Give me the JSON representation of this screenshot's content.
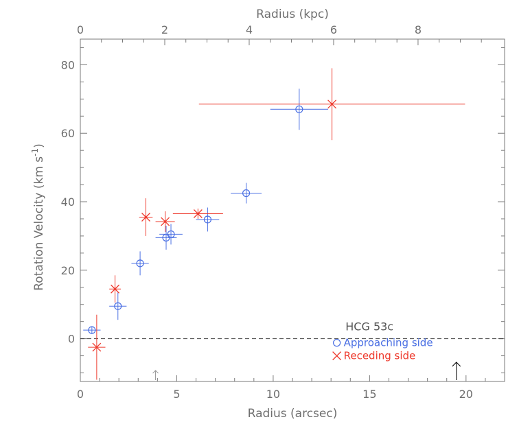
{
  "chart_data": {
    "type": "scatter",
    "xlabel": "Radius (arcsec)",
    "x2label": "Radius (kpc)",
    "ylabel_main": "Rotation Velocity (km s",
    "ylabel_sup": "-1",
    "ylabel_close": ")",
    "xlim": [
      0,
      22
    ],
    "x2lim": [
      0,
      10.05
    ],
    "ylim": [
      -12.5,
      87.5
    ],
    "x_major_ticks": [
      0,
      5,
      10,
      15,
      20
    ],
    "x_tick_labels": [
      "0",
      "5",
      "10",
      "15",
      "20"
    ],
    "x2_major_ticks": [
      0,
      2,
      4,
      6,
      8
    ],
    "x2_tick_labels": [
      "0",
      "2",
      "4",
      "6",
      "8"
    ],
    "y_major_ticks": [
      0,
      20,
      40,
      60,
      80
    ],
    "y_tick_labels": [
      "0",
      "20",
      "40",
      "60",
      "80"
    ],
    "zero_line": 0,
    "grid": false,
    "annotation": "HCG 53c",
    "legend_position": "bottom-right",
    "arrows": [
      {
        "x": 3.9,
        "color": "#999999",
        "kind": "small"
      },
      {
        "x": 19.5,
        "color": "#000000",
        "kind": "large"
      }
    ],
    "series": [
      {
        "name": "Approaching side",
        "marker": "circle",
        "color": "#4a6fe3",
        "points": [
          {
            "x": 0.6,
            "y": 2.5,
            "xerr": 0.45,
            "yerr": 1.0
          },
          {
            "x": 1.95,
            "y": 9.5,
            "xerr": 0.45,
            "yerr": 4.0
          },
          {
            "x": 3.1,
            "y": 22.0,
            "xerr": 0.45,
            "yerr": 3.5
          },
          {
            "x": 4.45,
            "y": 29.5,
            "xerr": 0.55,
            "yerr": 3.5
          },
          {
            "x": 4.7,
            "y": 30.5,
            "xerr": 0.6,
            "yerr": 3.0
          },
          {
            "x": 6.6,
            "y": 34.8,
            "xerr": 0.6,
            "yerr": 3.5
          },
          {
            "x": 8.6,
            "y": 42.5,
            "xerr": 0.8,
            "yerr": 3.0
          },
          {
            "x": 11.35,
            "y": 67.0,
            "xerr": 1.5,
            "yerr": 6.0
          }
        ]
      },
      {
        "name": "Receding side",
        "marker": "x",
        "color": "#ee3b2e",
        "points": [
          {
            "x": 0.85,
            "y": -2.5,
            "xerr": 0.45,
            "yerr": 9.5
          },
          {
            "x": 1.8,
            "y": 14.5,
            "xerr": 0.3,
            "yerr": 4.0
          },
          {
            "x": 3.4,
            "y": 35.5,
            "xerr": 0.35,
            "yerr": 5.5
          },
          {
            "x": 4.4,
            "y": 34.2,
            "xerr": 0.5,
            "yerr": 3.0
          },
          {
            "x": 6.1,
            "y": 36.5,
            "xerr": 1.3,
            "yerr": 1.5
          },
          {
            "x": 13.05,
            "y": 68.5,
            "xerr": 6.9,
            "yerr": 10.5
          }
        ]
      }
    ]
  }
}
